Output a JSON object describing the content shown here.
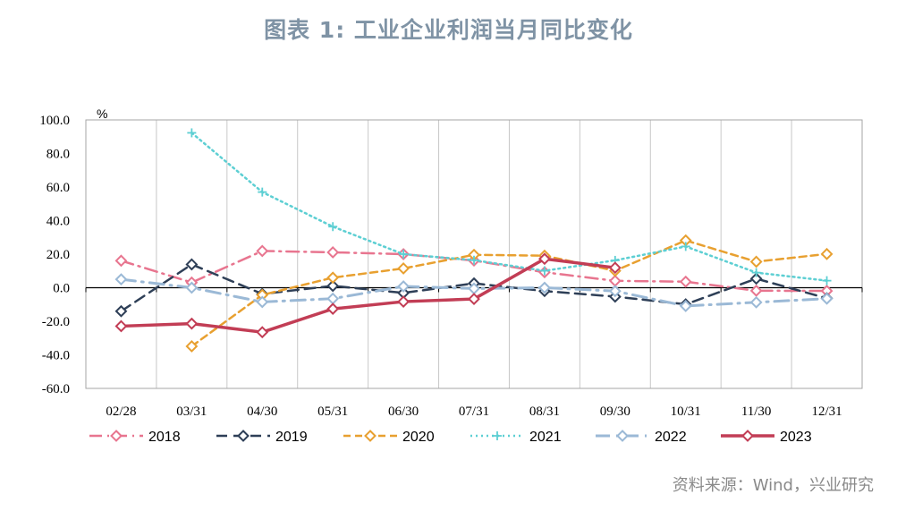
{
  "title": "图表 1:  工业企业利润当月同比变化",
  "source": "资料来源：Wind，兴业研究",
  "chart_data": {
    "type": "line",
    "title": "图表 1:  工业企业利润当月同比变化",
    "ylabel": "%",
    "xlabel": "",
    "categories": [
      "02/28",
      "03/31",
      "04/30",
      "05/31",
      "06/30",
      "07/31",
      "08/31",
      "09/30",
      "10/31",
      "11/30",
      "12/31"
    ],
    "ylim": [
      -60,
      100
    ],
    "yticks": [
      "100.0",
      "80.0",
      "60.0",
      "40.0",
      "20.0",
      "0.0",
      "-20.0",
      "-40.0",
      "-60.0"
    ],
    "ytick_values": [
      100,
      80,
      60,
      40,
      20,
      0,
      -20,
      -40,
      -60
    ],
    "grid": "vertical",
    "legend_position": "bottom",
    "series": [
      {
        "name": "2018",
        "color": "#e8758f",
        "dash": "14 6 2 6",
        "width": 2.5,
        "values": [
          16.1,
          3.1,
          21.9,
          21.1,
          20.0,
          16.2,
          9.2,
          4.1,
          3.6,
          -1.8,
          -1.9
        ]
      },
      {
        "name": "2019",
        "color": "#2e3f57",
        "dash": "12 7",
        "width": 2.5,
        "values": [
          -14.0,
          13.9,
          -3.7,
          1.1,
          -3.1,
          2.6,
          -2.0,
          -5.3,
          -9.9,
          5.4,
          -6.3
        ]
      },
      {
        "name": "2020",
        "color": "#e8a030",
        "dash": "8 5",
        "width": 2.5,
        "values": [
          null,
          -34.9,
          -4.3,
          6.0,
          11.5,
          19.6,
          19.1,
          10.1,
          28.2,
          15.5,
          20.1
        ]
      },
      {
        "name": "2021",
        "color": "#5dcfd3",
        "dash": "2 4",
        "width": 2.5,
        "values": [
          null,
          92.3,
          57.0,
          36.4,
          20.0,
          16.4,
          10.1,
          16.3,
          24.6,
          9.0,
          4.2
        ]
      },
      {
        "name": "2022",
        "color": "#9bb9d6",
        "dash": "16 7 2 7",
        "width": 3,
        "values": [
          5.0,
          0.0,
          -8.5,
          -6.5,
          0.8,
          -0.5,
          0.0,
          -2.0,
          -10.9,
          -8.7,
          -6.5
        ]
      },
      {
        "name": "2023",
        "color": "#c23d55",
        "dash": "",
        "width": 3.5,
        "values": [
          -22.9,
          -21.4,
          -26.5,
          -12.6,
          -8.3,
          -6.7,
          17.2,
          11.9,
          null,
          null,
          null
        ]
      }
    ]
  }
}
